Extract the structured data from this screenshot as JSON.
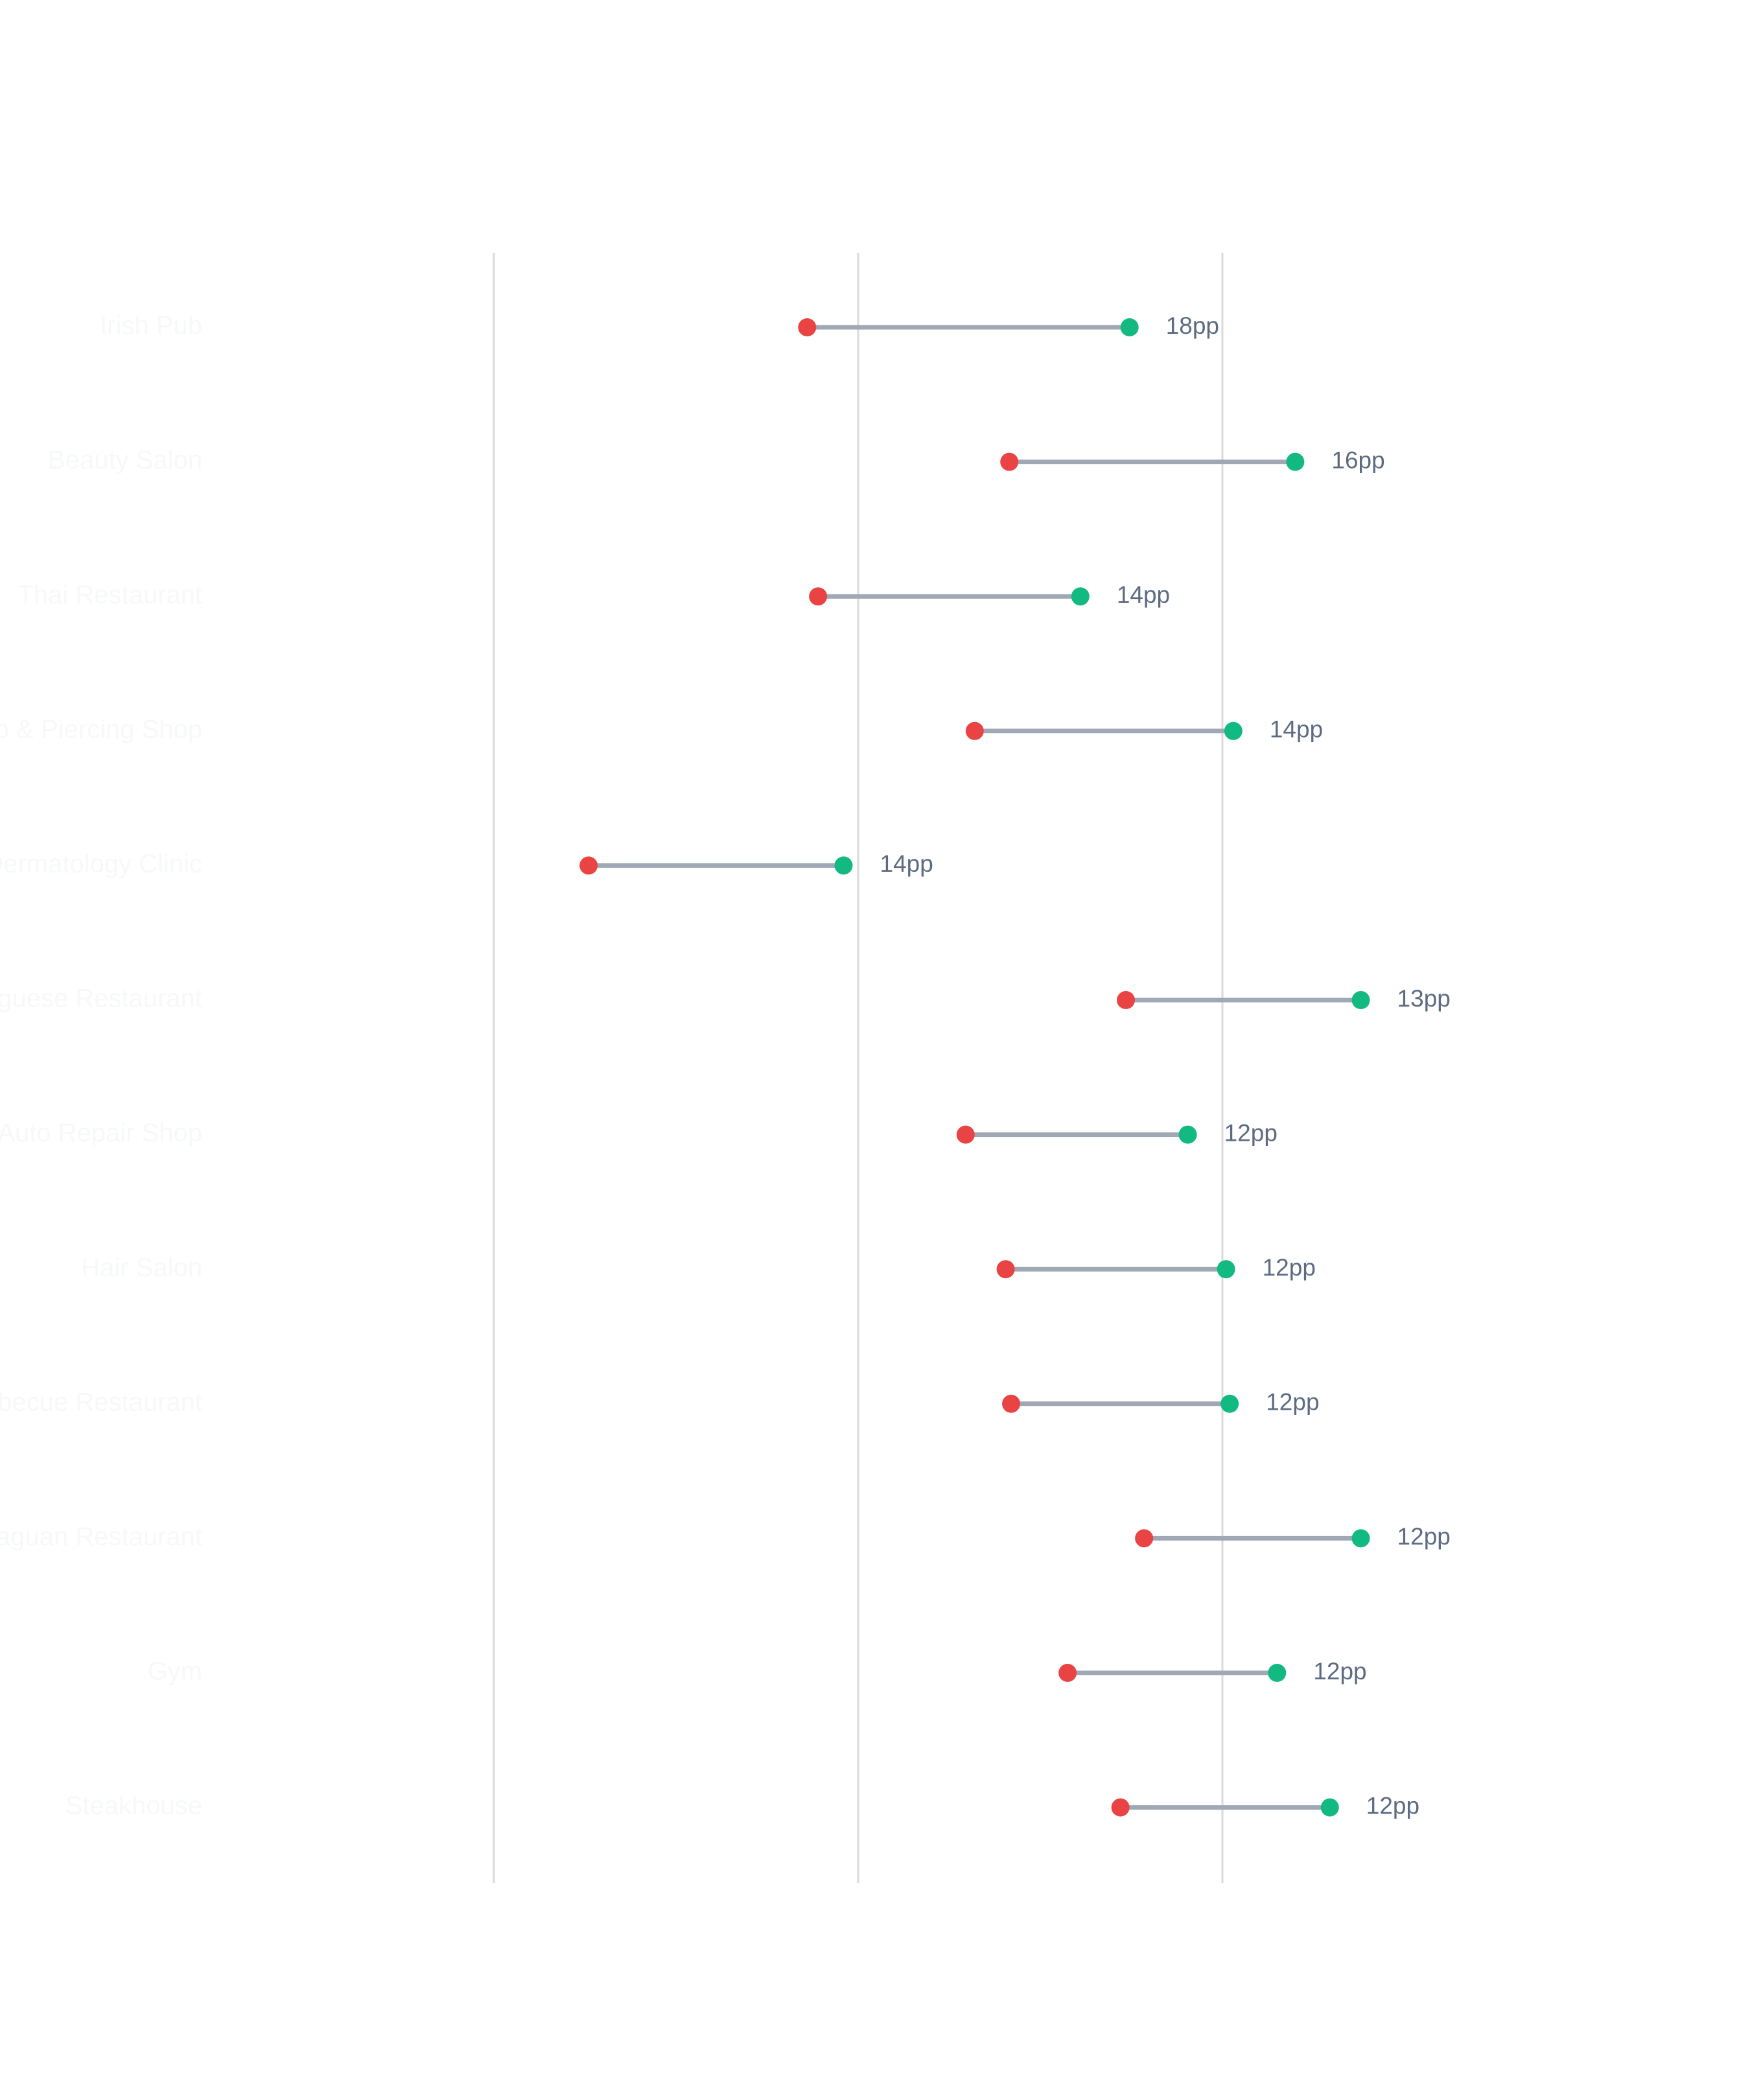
{
  "chart_data": {
    "type": "dumbbell",
    "title": "",
    "xlabel": "",
    "ylabel": "",
    "xlim": [
      0,
      60
    ],
    "gridlines_x": [
      0,
      20,
      40
    ],
    "colors": {
      "before": "#ea4343",
      "after": "#12b981",
      "connector": "#a0a8b6",
      "grid": "#d9dadd"
    },
    "rows": [
      {
        "category": "Irish Pub",
        "before": 17.2,
        "after": 34.9,
        "diff_label": "18pp"
      },
      {
        "category": "Beauty Salon",
        "before": 28.3,
        "after": 44.0,
        "diff_label": "16pp"
      },
      {
        "category": "Thai Restaurant",
        "before": 17.8,
        "after": 32.2,
        "diff_label": "14pp"
      },
      {
        "category": "Tattoo & Piercing Shop",
        "before": 26.4,
        "after": 40.6,
        "diff_label": "14pp"
      },
      {
        "category": "Dermatology Clinic",
        "before": 5.2,
        "after": 19.2,
        "diff_label": "14pp"
      },
      {
        "category": "Portuguese Restaurant",
        "before": 34.7,
        "after": 47.6,
        "diff_label": "13pp"
      },
      {
        "category": "Auto Repair Shop",
        "before": 25.9,
        "after": 38.1,
        "diff_label": "12pp"
      },
      {
        "category": "Hair Salon",
        "before": 28.1,
        "after": 40.2,
        "diff_label": "12pp"
      },
      {
        "category": "Barbecue Restaurant",
        "before": 28.4,
        "after": 40.4,
        "diff_label": "12pp"
      },
      {
        "category": "Paraguan Restaurant",
        "before": 35.7,
        "after": 47.6,
        "diff_label": "12pp"
      },
      {
        "category": "Gym",
        "before": 31.5,
        "after": 43.0,
        "diff_label": "12pp"
      },
      {
        "category": "Steakhouse",
        "before": 34.4,
        "after": 45.9,
        "diff_label": "12pp"
      }
    ]
  }
}
